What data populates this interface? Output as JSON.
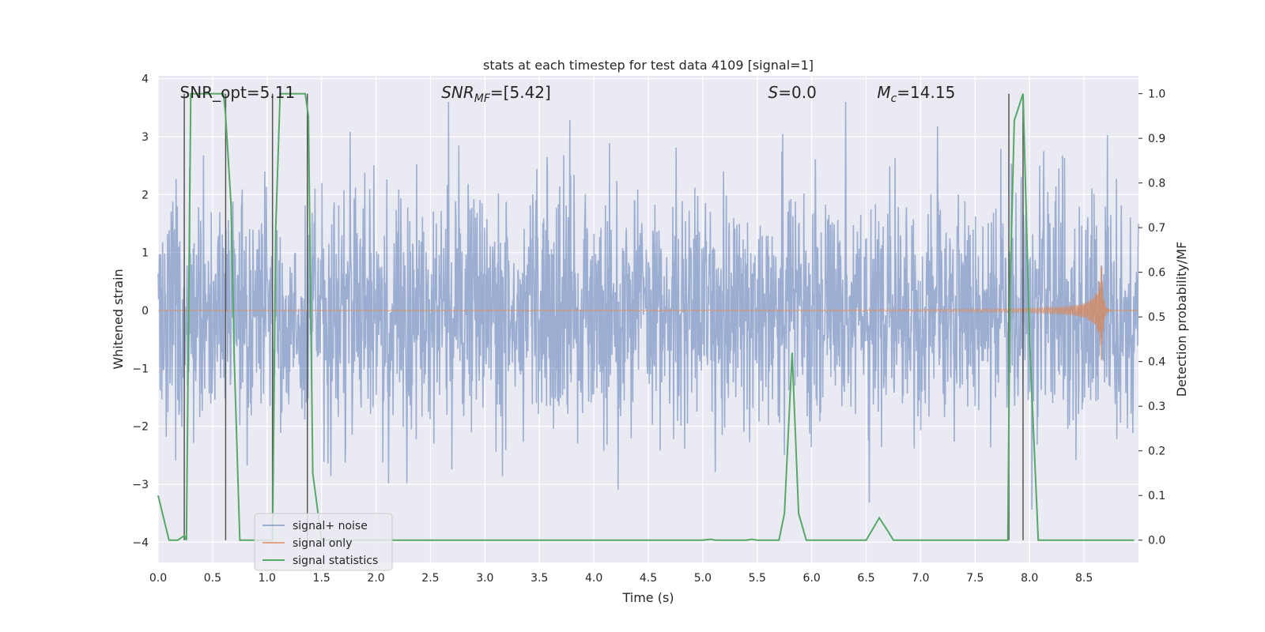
{
  "chart_data": {
    "type": "line",
    "title": "stats at each timestep for test data 4109 [signal=1]",
    "xlabel": "Time (s)",
    "ylabel": "Whitened strain",
    "ylabel_right": "Detection probability/MF",
    "xlim": [
      0,
      9.0
    ],
    "ylim": [
      -4.35,
      4.05
    ],
    "ylim_right": [
      -0.05,
      1.04
    ],
    "x_ticks": [
      "0.0",
      "0.5",
      "1.0",
      "1.5",
      "2.0",
      "2.5",
      "3.0",
      "3.5",
      "4.0",
      "4.5",
      "5.0",
      "5.5",
      "6.0",
      "6.5",
      "7.0",
      "7.5",
      "8.0",
      "8.5"
    ],
    "y_ticks": [
      "4",
      "3",
      "2",
      "1",
      "0",
      "−1",
      "−2",
      "−3",
      "−4"
    ],
    "y_right_ticks": [
      "1.0",
      "0.9",
      "0.8",
      "0.7",
      "0.6",
      "0.5",
      "0.4",
      "0.3",
      "0.2",
      "0.1",
      "0.0"
    ],
    "grid": true,
    "legend_position": "lower-left",
    "colors": {
      "noise": "#4c72b0",
      "signal": "#dd8452",
      "stats": "#55a868",
      "marker": "#555555",
      "background": "#eaeaf2"
    },
    "annotations": [
      {
        "base": "SNR_opt=5.11",
        "x": 0.2
      },
      {
        "base": "SNR",
        "sub": "MF",
        "rest": "=[5.42]",
        "italic": true,
        "x": 2.6
      },
      {
        "base": "S",
        "rest": "=0.0",
        "italic": true,
        "x": 5.6
      },
      {
        "base": "M",
        "sub": "c",
        "rest": "=14.15",
        "italic": true,
        "x": 6.6
      }
    ],
    "series": [
      {
        "name": "signal+ noise",
        "kind": "noise",
        "description_amplitude": 1.7,
        "peak_abs": 3.6,
        "x_range": [
          0,
          9.0
        ]
      },
      {
        "name": "signal only",
        "kind": "chirp",
        "x_range": [
          0,
          8.68
        ],
        "peak_time": 8.66,
        "peak_amplitude": 0.95
      },
      {
        "name": "signal statistics",
        "kind": "prob",
        "x": [
          0,
          0.05,
          0.1,
          0.18,
          0.24,
          0.26,
          0.3,
          0.6,
          0.62,
          0.67,
          0.7,
          0.75,
          0.78,
          1.0,
          1.05,
          1.08,
          1.12,
          1.35,
          1.38,
          1.42,
          1.5,
          1.6,
          5.0,
          5.07,
          5.12,
          5.4,
          5.45,
          5.5,
          5.7,
          5.75,
          5.82,
          5.88,
          5.95,
          6.5,
          6.62,
          6.7,
          6.75,
          7.8,
          7.82,
          7.86,
          7.94,
          8.0,
          8.08,
          8.96
        ],
        "values": [
          0.1,
          0.05,
          0.0,
          0.0,
          0.01,
          0.0,
          1.0,
          1.0,
          0.95,
          0.75,
          0.4,
          0.0,
          0.0,
          0.0,
          0.0,
          0.7,
          1.0,
          1.0,
          0.95,
          0.15,
          0.0,
          0.0,
          0.0,
          0.002,
          0.0,
          0.0,
          0.002,
          0.0,
          0.0,
          0.06,
          0.42,
          0.06,
          0.0,
          0.0,
          0.05,
          0.02,
          0.0,
          0.0,
          0.55,
          0.94,
          1.0,
          0.45,
          0.0,
          0.0
        ]
      }
    ],
    "markers_x": [
      0.24,
      0.62,
      1.05,
      1.37,
      7.81,
      7.94
    ],
    "legend": [
      "signal+ noise",
      "signal only",
      "signal statistics"
    ]
  }
}
